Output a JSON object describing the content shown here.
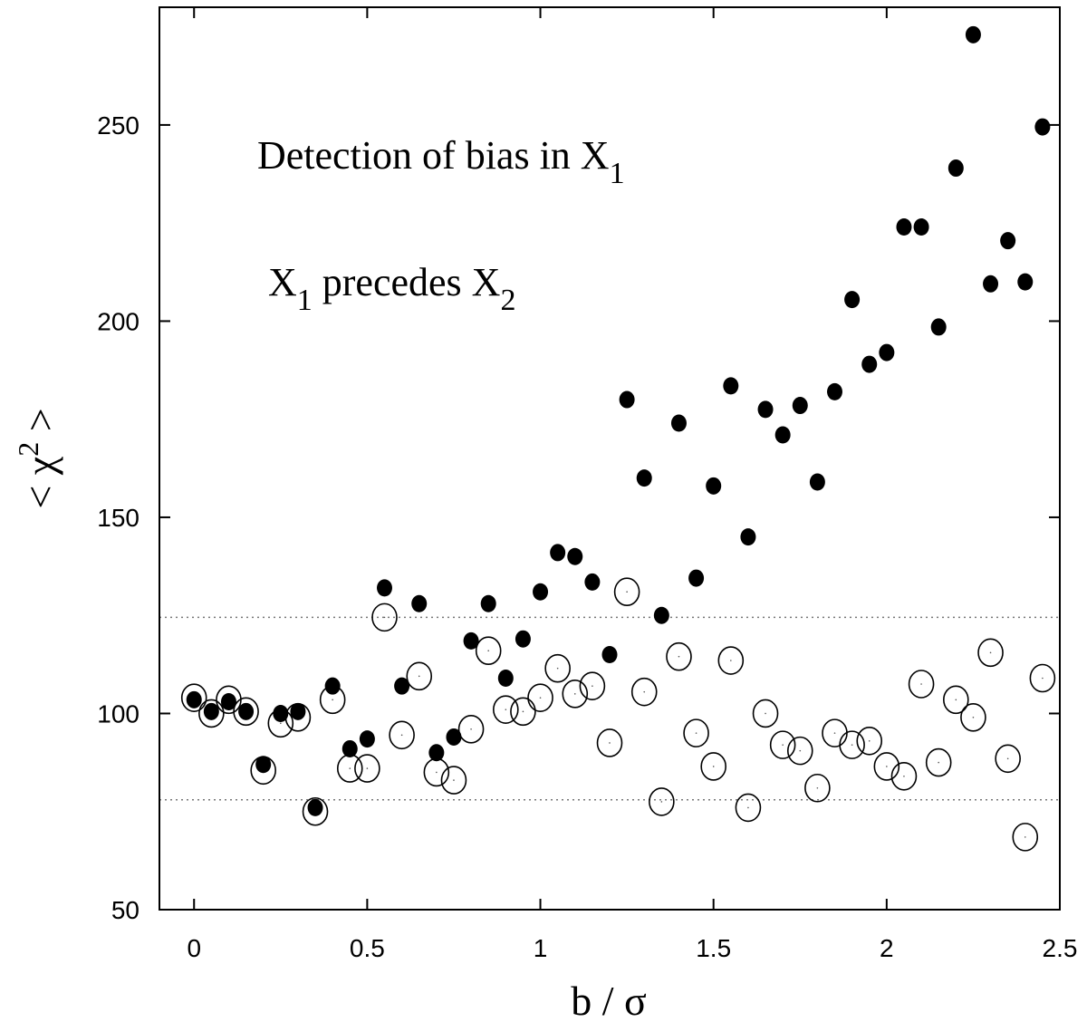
{
  "chart_data": {
    "type": "scatter",
    "xlabel": "b / σ",
    "ylabel": "< χ2 >",
    "xlim": [
      -0.1,
      2.5
    ],
    "ylim": [
      50,
      280
    ],
    "xticks": [
      0,
      0.5,
      1,
      1.5,
      2,
      2.5
    ],
    "xtick_labels": [
      "0",
      "0.5",
      "1",
      "1.5",
      "2",
      "2.5"
    ],
    "yticks": [
      50,
      100,
      150,
      200,
      250
    ],
    "ytick_labels": [
      "50",
      "100",
      "150",
      "200",
      "250"
    ],
    "grid": false,
    "reference_lines": [
      124.5,
      78
    ],
    "annotations": [
      {
        "text": "Detection of bias in  X",
        "subscript": "1"
      },
      {
        "parts": [
          {
            "text": "X",
            "sub": "1"
          },
          {
            "text": " precedes  X",
            "sub": "2"
          }
        ]
      }
    ],
    "series": [
      {
        "name": "filled",
        "marker": "filled-circle",
        "x": [
          0,
          0.05,
          0.1,
          0.15,
          0.2,
          0.25,
          0.3,
          0.35,
          0.4,
          0.45,
          0.5,
          0.55,
          0.6,
          0.65,
          0.7,
          0.75,
          0.8,
          0.85,
          0.9,
          0.95,
          1.0,
          1.05,
          1.1,
          1.15,
          1.2,
          1.25,
          1.3,
          1.35,
          1.4,
          1.45,
          1.5,
          1.55,
          1.6,
          1.65,
          1.7,
          1.75,
          1.8,
          1.85,
          1.9,
          1.95,
          2.0,
          2.05,
          2.1,
          2.15,
          2.2,
          2.25,
          2.3,
          2.35,
          2.4,
          2.45
        ],
        "y": [
          103.5,
          100.5,
          103,
          100.5,
          87,
          100,
          100.5,
          76,
          107,
          91,
          93.5,
          132,
          107,
          128,
          90,
          94,
          118.5,
          128,
          109,
          119,
          131,
          141,
          140,
          133.5,
          115,
          180,
          160,
          125,
          174,
          134.5,
          158,
          183.5,
          145,
          177.5,
          171,
          178.5,
          159,
          182,
          205.5,
          189,
          192,
          224,
          224,
          198.5,
          239,
          273,
          209.5,
          220.5,
          210,
          249.5
        ]
      },
      {
        "name": "open",
        "marker": "open-circle",
        "x": [
          0,
          0.05,
          0.1,
          0.15,
          0.2,
          0.25,
          0.3,
          0.35,
          0.4,
          0.45,
          0.5,
          0.55,
          0.6,
          0.65,
          0.7,
          0.75,
          0.8,
          0.85,
          0.9,
          0.95,
          1.0,
          1.05,
          1.1,
          1.15,
          1.2,
          1.25,
          1.3,
          1.35,
          1.4,
          1.45,
          1.5,
          1.55,
          1.6,
          1.65,
          1.7,
          1.75,
          1.8,
          1.85,
          1.9,
          1.95,
          2.0,
          2.05,
          2.1,
          2.15,
          2.2,
          2.25,
          2.3,
          2.35,
          2.4,
          2.45
        ],
        "y": [
          104,
          100,
          103.5,
          100.5,
          85.5,
          97.5,
          99,
          75,
          103.5,
          86,
          86,
          124.5,
          94.5,
          109.5,
          85,
          83,
          96,
          116,
          101,
          100.5,
          104,
          111.5,
          105,
          107,
          92.5,
          131,
          105.5,
          77.5,
          114.5,
          95,
          86.5,
          113.5,
          76,
          100,
          92,
          90.5,
          81,
          95,
          92,
          93,
          86.5,
          84,
          107.5,
          87.5,
          103.5,
          99,
          115.5,
          88.5,
          68.5,
          109
        ]
      }
    ]
  }
}
